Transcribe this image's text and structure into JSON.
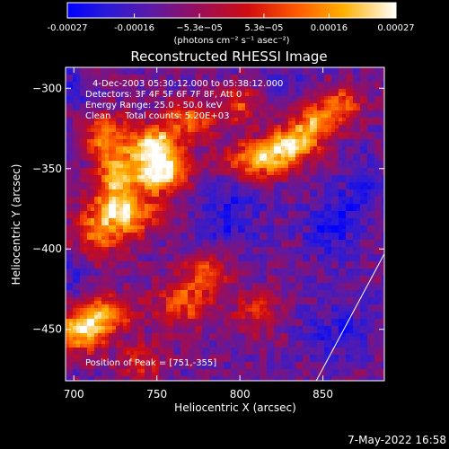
{
  "chart_data": {
    "type": "heatmap",
    "title": "Reconstructed RHESSI Image",
    "xlabel": "Heliocentric X (arcsec)",
    "ylabel": "Heliocentric Y (arcsec)",
    "xlim": [
      695,
      887
    ],
    "ylim": [
      -482,
      -287
    ],
    "x_ticks": [
      700,
      750,
      800,
      850
    ],
    "y_ticks": [
      -300,
      -350,
      -400,
      -450
    ],
    "colorbar": {
      "min": -0.00027,
      "max": 0.00027,
      "tick_values": [
        -0.00027,
        -0.00016,
        -5.3e-05,
        5.3e-05,
        0.00016,
        0.00027
      ],
      "tick_labels": [
        "-0.00027",
        "-0.00016",
        "−5.3e−05",
        "5.3e−05",
        "0.00016",
        "0.00027"
      ],
      "unit_label": "(photons cm⁻² s⁻¹ asec⁻²)"
    },
    "annotations": [
      "4-Dec-2003 05:30:12.000 to 05:38:12.000",
      "Detectors: 3F 4F 5F 6F 7F 8F, Att 0",
      "Energy Range: 25.0 - 50.0 keV",
      "Clean     Total counts: 5.20E+03"
    ],
    "peak_label": "Position of Peak = [751,-355]",
    "peak": [
      751,
      -355
    ],
    "limb_line": [
      [
        846,
        -482
      ],
      [
        887,
        -403
      ]
    ],
    "bright_regions": [
      {
        "x": 752,
        "y": -352,
        "sx": 12,
        "sy": 9,
        "amp": 1.0
      },
      {
        "x": 748,
        "y": -335,
        "sx": 10,
        "sy": 8,
        "amp": 0.85
      },
      {
        "x": 725,
        "y": -358,
        "sx": 9,
        "sy": 14,
        "amp": 0.65
      },
      {
        "x": 735,
        "y": -378,
        "sx": 14,
        "sy": 9,
        "amp": 0.6
      },
      {
        "x": 720,
        "y": -330,
        "sx": 10,
        "sy": 10,
        "amp": 0.55
      },
      {
        "x": 715,
        "y": -390,
        "sx": 12,
        "sy": 12,
        "amp": 0.5
      },
      {
        "x": 705,
        "y": -450,
        "sx": 10,
        "sy": 10,
        "amp": 0.85
      },
      {
        "x": 722,
        "y": -440,
        "sx": 10,
        "sy": 8,
        "amp": 0.65
      },
      {
        "x": 770,
        "y": -320,
        "sx": 12,
        "sy": 8,
        "amp": 0.55
      },
      {
        "x": 780,
        "y": -415,
        "sx": 10,
        "sy": 10,
        "amp": 0.55
      },
      {
        "x": 765,
        "y": -435,
        "sx": 12,
        "sy": 10,
        "amp": 0.5
      },
      {
        "x": 810,
        "y": -345,
        "sx": 14,
        "sy": 8,
        "amp": 0.75
      },
      {
        "x": 830,
        "y": -335,
        "sx": 12,
        "sy": 8,
        "amp": 0.7
      },
      {
        "x": 845,
        "y": -322,
        "sx": 10,
        "sy": 8,
        "amp": 0.6
      },
      {
        "x": 860,
        "y": -310,
        "sx": 10,
        "sy": 8,
        "amp": 0.55
      },
      {
        "x": 800,
        "y": -310,
        "sx": 8,
        "sy": 8,
        "amp": 0.45
      },
      {
        "x": 810,
        "y": -440,
        "sx": 10,
        "sy": 10,
        "amp": 0.35
      },
      {
        "x": 740,
        "y": -470,
        "sx": 10,
        "sy": 8,
        "amp": 0.4
      }
    ],
    "dark_regions": [
      {
        "x": 793,
        "y": -378,
        "sx": 14,
        "sy": 18,
        "amp": 0.8
      },
      {
        "x": 855,
        "y": -385,
        "sx": 12,
        "sy": 14,
        "amp": 0.9
      },
      {
        "x": 875,
        "y": -360,
        "sx": 8,
        "sy": 16,
        "amp": 0.7
      },
      {
        "x": 860,
        "y": -450,
        "sx": 14,
        "sy": 14,
        "amp": 0.7
      },
      {
        "x": 700,
        "y": -300,
        "sx": 7,
        "sy": 8,
        "amp": 0.6
      },
      {
        "x": 700,
        "y": -415,
        "sx": 8,
        "sy": 10,
        "amp": 0.5
      },
      {
        "x": 830,
        "y": -300,
        "sx": 10,
        "sy": 6,
        "amp": 0.5
      }
    ]
  },
  "footer": {
    "timestamp": "7-May-2022 16:58"
  }
}
